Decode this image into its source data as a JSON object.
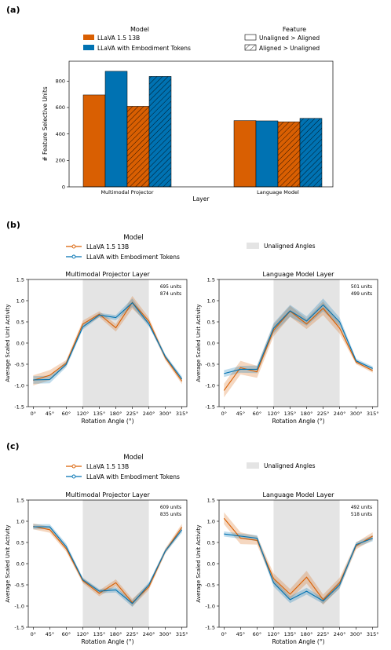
{
  "colors": {
    "orange": "#d95f02",
    "blue": "#0072b2",
    "shade": "#e4e4e4"
  },
  "panel_a": {
    "label": "(a)",
    "legend_model_title": "Model",
    "legend_feature_title": "Feature",
    "model_entries": [
      "LLaVA 1.5 13B",
      "LLaVA with Embodiment Tokens"
    ],
    "feature_entries": [
      "Unaligned > Aligned",
      "Aligned > Unaligned"
    ]
  },
  "panel_b": {
    "label": "(b)",
    "legend_title": "Model",
    "legend_entries": [
      "LLaVA 1.5 13B",
      "LLaVA with Embodiment Tokens"
    ],
    "shade_label": "Unaligned Angles"
  },
  "panel_c": {
    "label": "(c)",
    "legend_title": "Model",
    "legend_entries": [
      "LLaVA 1.5 13B",
      "LLaVA with Embodiment Tokens"
    ],
    "shade_label": "Unaligned Angles"
  },
  "chart_data": [
    {
      "id": "a",
      "type": "bar",
      "xlabel": "Layer",
      "ylabel": "# Feature Selective Units",
      "categories": [
        "Multimodal Projector",
        "Language Model"
      ],
      "ylim": [
        0,
        950
      ],
      "yticks": [
        0,
        200,
        400,
        600,
        800
      ],
      "bars": [
        {
          "category": "Multimodal Projector",
          "model": "LLaVA 1.5 13B",
          "feature": "Unaligned > Aligned",
          "value": 695
        },
        {
          "category": "Multimodal Projector",
          "model": "LLaVA with Embodiment Tokens",
          "feature": "Unaligned > Aligned",
          "value": 874
        },
        {
          "category": "Multimodal Projector",
          "model": "LLaVA 1.5 13B",
          "feature": "Aligned > Unaligned",
          "value": 609
        },
        {
          "category": "Multimodal Projector",
          "model": "LLaVA with Embodiment Tokens",
          "feature": "Aligned > Unaligned",
          "value": 835
        },
        {
          "category": "Language Model",
          "model": "LLaVA 1.5 13B",
          "feature": "Unaligned > Aligned",
          "value": 501
        },
        {
          "category": "Language Model",
          "model": "LLaVA with Embodiment Tokens",
          "feature": "Unaligned > Aligned",
          "value": 499
        },
        {
          "category": "Language Model",
          "model": "LLaVA 1.5 13B",
          "feature": "Aligned > Unaligned",
          "value": 492
        },
        {
          "category": "Language Model",
          "model": "LLaVA with Embodiment Tokens",
          "feature": "Aligned > Unaligned",
          "value": 518
        }
      ],
      "grid": false
    },
    {
      "id": "b1",
      "type": "line",
      "title": "Multimodal Projector Layer",
      "xlabel": "Rotation Angle (°)",
      "ylabel": "Average Scaled Unit Activity",
      "x": [
        0,
        45,
        60,
        120,
        135,
        180,
        225,
        240,
        300,
        315
      ],
      "xtick_labels": [
        "0°",
        "45°",
        "60°",
        "120°",
        "135°",
        "180°",
        "225°",
        "240°",
        "300°",
        "315°"
      ],
      "ylim": [
        -1.5,
        1.5
      ],
      "yticks": [
        -1.5,
        -1.0,
        -0.5,
        0.0,
        0.5,
        1.0,
        1.5
      ],
      "shaded_range": [
        "120°",
        "240°"
      ],
      "series": [
        {
          "name": "LLaVA 1.5 13B",
          "values": [
            -0.88,
            -0.76,
            -0.47,
            0.45,
            0.68,
            0.36,
            0.96,
            0.52,
            -0.35,
            -0.9
          ],
          "band": [
            0.12,
            0.12,
            0.07,
            0.08,
            0.07,
            0.09,
            0.15,
            0.08,
            0.06,
            0.07
          ]
        },
        {
          "name": "LLaVA with Embodiment Tokens",
          "values": [
            -0.87,
            -0.86,
            -0.5,
            0.38,
            0.66,
            0.6,
            0.95,
            0.45,
            -0.32,
            -0.85
          ],
          "band": [
            0.09,
            0.09,
            0.07,
            0.06,
            0.05,
            0.06,
            0.1,
            0.06,
            0.05,
            0.06
          ]
        }
      ],
      "annotations": [
        "695 units",
        "874 units"
      ]
    },
    {
      "id": "b2",
      "type": "line",
      "title": "Language Model Layer",
      "xlabel": "Rotation Angle (°)",
      "ylabel": "Average Scaled Unit Activity",
      "x": [
        0,
        45,
        60,
        120,
        135,
        180,
        225,
        240,
        300,
        315
      ],
      "xtick_labels": [
        "0°",
        "45°",
        "60°",
        "120°",
        "135°",
        "180°",
        "225°",
        "240°",
        "300°",
        "315°"
      ],
      "ylim": [
        -1.5,
        1.5
      ],
      "yticks": [
        -1.5,
        -1.0,
        -0.5,
        0.0,
        0.5,
        1.0,
        1.5
      ],
      "shaded_range": [
        "120°",
        "240°"
      ],
      "series": [
        {
          "name": "LLaVA 1.5 13B",
          "values": [
            -1.12,
            -0.58,
            -0.68,
            0.3,
            0.75,
            0.45,
            0.82,
            0.35,
            -0.45,
            -0.65
          ],
          "band": [
            0.16,
            0.16,
            0.14,
            0.14,
            0.13,
            0.12,
            0.16,
            0.13,
            0.05,
            0.05
          ]
        },
        {
          "name": "LLaVA with Embodiment Tokens",
          "values": [
            -0.72,
            -0.62,
            -0.62,
            0.35,
            0.76,
            0.52,
            0.9,
            0.5,
            -0.42,
            -0.6
          ],
          "band": [
            0.08,
            0.08,
            0.09,
            0.12,
            0.14,
            0.11,
            0.15,
            0.1,
            0.05,
            0.05
          ]
        }
      ],
      "annotations": [
        "501 units",
        "499 units"
      ]
    },
    {
      "id": "c1",
      "type": "line",
      "title": "Multimodal Projector Layer",
      "xlabel": "Rotation Angle (°)",
      "ylabel": "Average Scaled Unit Activity",
      "x": [
        0,
        45,
        60,
        120,
        135,
        180,
        225,
        240,
        300,
        315
      ],
      "xtick_labels": [
        "0°",
        "45°",
        "60°",
        "120°",
        "135°",
        "180°",
        "225°",
        "240°",
        "300°",
        "315°"
      ],
      "ylim": [
        -1.5,
        1.5
      ],
      "yticks": [
        -1.5,
        -1.0,
        -0.5,
        0.0,
        0.5,
        1.0,
        1.5
      ],
      "shaded_range": [
        "120°",
        "240°"
      ],
      "series": [
        {
          "name": "LLaVA 1.5 13B",
          "values": [
            0.88,
            0.8,
            0.35,
            -0.4,
            -0.7,
            -0.45,
            -0.92,
            -0.55,
            0.3,
            0.86
          ],
          "band": [
            0.07,
            0.07,
            0.07,
            0.06,
            0.07,
            0.08,
            0.09,
            0.07,
            0.06,
            0.08
          ]
        },
        {
          "name": "LLaVA with Embodiment Tokens",
          "values": [
            0.87,
            0.87,
            0.4,
            -0.38,
            -0.65,
            -0.62,
            -0.94,
            -0.5,
            0.3,
            0.8
          ],
          "band": [
            0.06,
            0.06,
            0.07,
            0.05,
            0.05,
            0.06,
            0.08,
            0.06,
            0.05,
            0.07
          ]
        }
      ],
      "annotations": [
        "609 units",
        "835 units"
      ]
    },
    {
      "id": "c2",
      "type": "line",
      "title": "Language Model Layer",
      "xlabel": "Rotation Angle (°)",
      "ylabel": "Average Scaled Unit Activity",
      "x": [
        0,
        45,
        60,
        120,
        135,
        180,
        225,
        240,
        300,
        315
      ],
      "xtick_labels": [
        "0°",
        "45°",
        "60°",
        "120°",
        "135°",
        "180°",
        "225°",
        "240°",
        "300°",
        "315°"
      ],
      "ylim": [
        -1.5,
        1.5
      ],
      "yticks": [
        -1.5,
        -1.0,
        -0.5,
        0.0,
        0.5,
        1.0,
        1.5
      ],
      "shaded_range": [
        "120°",
        "240°"
      ],
      "series": [
        {
          "name": "LLaVA 1.5 13B",
          "values": [
            1.07,
            0.6,
            0.55,
            -0.35,
            -0.72,
            -0.32,
            -0.85,
            -0.45,
            0.42,
            0.65
          ],
          "band": [
            0.14,
            0.14,
            0.1,
            0.12,
            0.12,
            0.15,
            0.12,
            0.12,
            0.08,
            0.09
          ]
        },
        {
          "name": "LLaVA with Embodiment Tokens",
          "values": [
            0.7,
            0.65,
            0.6,
            -0.45,
            -0.85,
            -0.65,
            -0.88,
            -0.5,
            0.45,
            0.6
          ],
          "band": [
            0.06,
            0.06,
            0.07,
            0.09,
            0.08,
            0.08,
            0.07,
            0.09,
            0.06,
            0.07
          ]
        }
      ],
      "annotations": [
        "492 units",
        "518 units"
      ]
    }
  ]
}
